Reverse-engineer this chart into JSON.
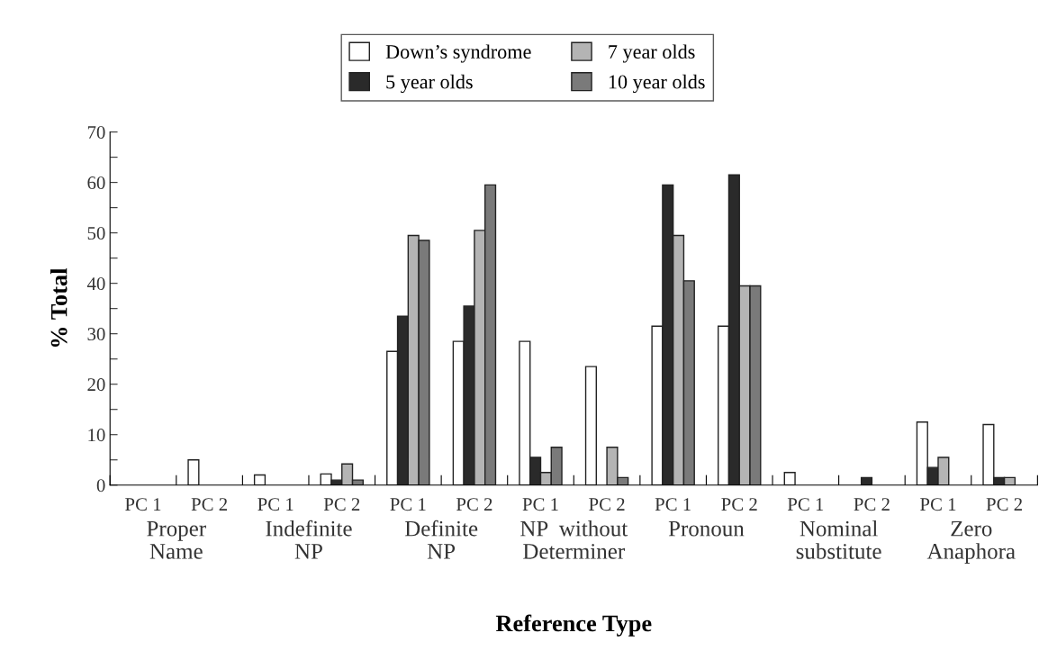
{
  "chart_data": {
    "type": "bar",
    "xlabel": "Reference Type",
    "ylabel": "% Total",
    "categories": [
      "PC 1",
      "PC 2",
      "PC 1",
      "PC 2",
      "PC 1",
      "PC 2",
      "PC 1",
      "PC 2",
      "PC 1",
      "PC 2",
      "PC 1",
      "PC 2",
      "PC 1",
      "PC 2"
    ],
    "annotations": [
      "Proper\nName",
      "Indefinite\nNP",
      "Definite\nNP",
      "NP  without\nDeterminer",
      "Pronoun",
      "Nominal\nsubstitute",
      "Zero\nAnaphora"
    ],
    "series": [
      {
        "name": "Down’s syndrome",
        "color": "#ffffff",
        "values": [
          0,
          5,
          2,
          2.2,
          26.5,
          28.5,
          28.5,
          23.5,
          31.5,
          31.5,
          2.5,
          0,
          12.5,
          12
        ]
      },
      {
        "name": "5 year olds",
        "color": "#2a2a2a",
        "values": [
          0,
          0,
          0,
          1,
          33.5,
          35.5,
          5.5,
          0,
          59.5,
          61.5,
          0,
          1.5,
          3.5,
          1.5
        ]
      },
      {
        "name": "7 year olds",
        "color": "#b4b4b4",
        "values": [
          0,
          0,
          0,
          4.2,
          49.5,
          50.5,
          2.5,
          7.5,
          49.5,
          39.5,
          0,
          0,
          5.5,
          1.5
        ]
      },
      {
        "name": "10 year olds",
        "color": "#7a7a7a",
        "values": [
          0,
          0,
          0,
          1,
          48.5,
          59.5,
          7.5,
          1.5,
          40.5,
          39.5,
          0,
          0,
          0,
          0
        ]
      }
    ],
    "ylim": [
      0,
      70
    ],
    "yticks": [
      0,
      {
        "value": 5,
        "label": null
      },
      10,
      {
        "value": 15,
        "label": null
      },
      20,
      {
        "value": 25,
        "label": null
      },
      30,
      {
        "value": 35,
        "label": null
      },
      40,
      {
        "value": 45,
        "label": null
      },
      50,
      {
        "value": 55,
        "label": null
      },
      60,
      {
        "value": 65,
        "label": null
      },
      70
    ],
    "grid": false,
    "legend": "top"
  }
}
